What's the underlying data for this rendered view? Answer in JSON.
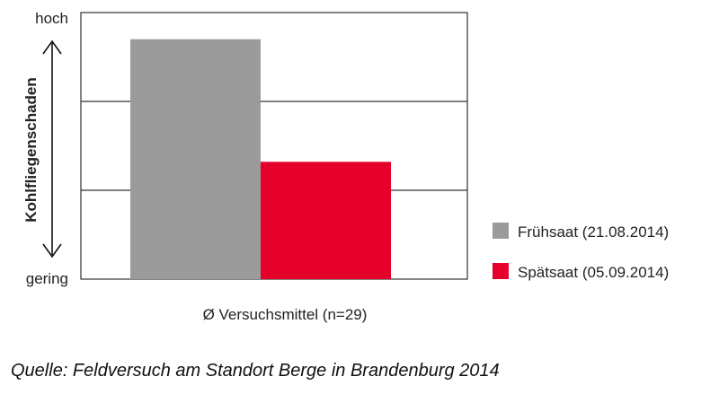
{
  "chart_data": {
    "type": "bar",
    "categories": [
      "Ø Versuchsmittel (n=29)"
    ],
    "series": [
      {
        "name": "Frühsaat (21.08.2014)",
        "values": [
          0.9
        ],
        "color": "#9b9b9b"
      },
      {
        "name": "Spätsaat (05.09.2014)",
        "values": [
          0.44
        ],
        "color": "#e4002b"
      }
    ],
    "ylabel": "Kohlfliegenschaden",
    "y_top_label": "hoch",
    "y_bottom_label": "gering",
    "xlabel": "Ø Versuchsmittel (n=29)",
    "ylim": [
      0,
      1
    ],
    "grid": true,
    "legend_position": "right"
  },
  "source": "Quelle: Feldversuch am Standort Berge in Brandenburg 2014"
}
